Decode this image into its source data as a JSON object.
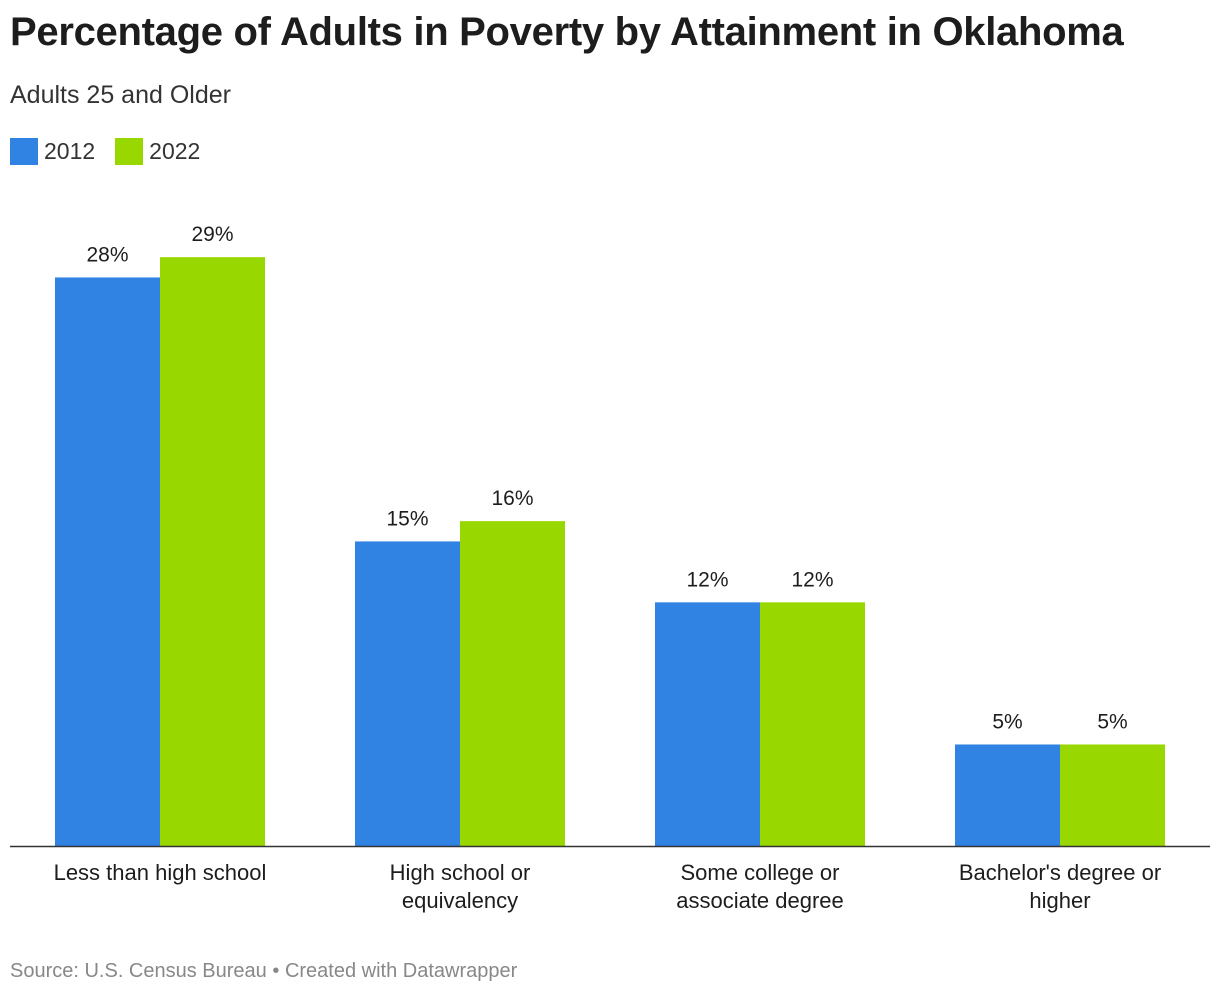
{
  "chart_data": {
    "type": "bar",
    "title": "Percentage of Adults in Poverty by Attainment in Oklahoma",
    "subtitle": "Adults 25 and Older",
    "categories": [
      [
        "Less than high school"
      ],
      [
        "High school or",
        "equivalency"
      ],
      [
        "Some college or",
        "associate degree"
      ],
      [
        "Bachelor's degree or",
        "higher"
      ]
    ],
    "series": [
      {
        "name": "2012",
        "color": "#3083e2",
        "values": [
          28,
          15,
          12,
          5
        ],
        "labels": [
          "28%",
          "15%",
          "12%",
          "5%"
        ]
      },
      {
        "name": "2022",
        "color": "#98d700",
        "values": [
          29,
          16,
          12,
          5
        ],
        "labels": [
          "29%",
          "16%",
          "12%",
          "5%"
        ]
      }
    ],
    "ylim": [
      0,
      29.5
    ],
    "xlabel": "",
    "ylabel": "",
    "grid": false
  },
  "footer": {
    "source": "Source: U.S. Census Bureau",
    "separator": "•",
    "credit": "Created with Datawrapper"
  }
}
